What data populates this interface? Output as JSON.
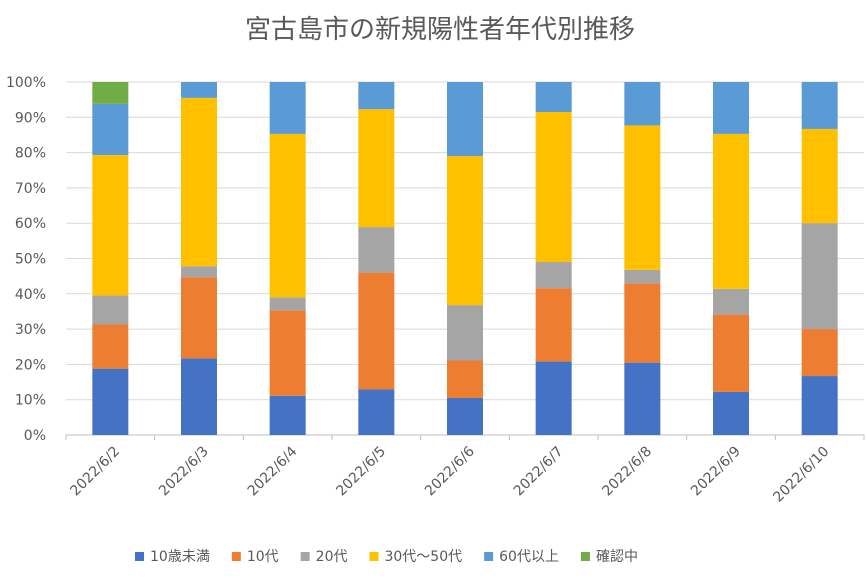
{
  "chart_data": {
    "type": "bar",
    "stacked": true,
    "percent_stacked": true,
    "title": "宮古島市の新規陽性者年代別推移",
    "xlabel": "",
    "ylabel": "",
    "ylim": [
      0,
      100
    ],
    "y_ticks": [
      "0%",
      "10%",
      "20%",
      "30%",
      "40%",
      "50%",
      "60%",
      "70%",
      "80%",
      "90%",
      "100%"
    ],
    "grid": true,
    "legend_position": "bottom",
    "categories": [
      "2022/6/2",
      "2022/6/3",
      "2022/6/4",
      "2022/6/5",
      "2022/6/6",
      "2022/6/7",
      "2022/6/8",
      "2022/6/9",
      "2022/6/10"
    ],
    "series": [
      {
        "name": "10歳未満",
        "color": "#4472C4",
        "values": [
          18.8,
          21.7,
          11.1,
          12.9,
          10.5,
          20.8,
          20.5,
          12.2,
          16.7
        ]
      },
      {
        "name": "10代",
        "color": "#ED7D31",
        "values": [
          12.5,
          23.0,
          24.2,
          33.1,
          10.6,
          20.8,
          22.5,
          21.9,
          13.3
        ]
      },
      {
        "name": "20代",
        "color": "#A5A5A5",
        "values": [
          8.2,
          3.1,
          3.7,
          12.9,
          15.7,
          7.4,
          3.8,
          7.3,
          30.0
        ]
      },
      {
        "name": "30代～50代",
        "color": "#FFC000",
        "values": [
          39.8,
          47.7,
          46.3,
          33.4,
          42.2,
          42.5,
          40.9,
          43.9,
          26.7
        ]
      },
      {
        "name": "60代以上",
        "color": "#5B9BD5",
        "values": [
          14.5,
          4.5,
          14.7,
          7.7,
          21.0,
          8.5,
          12.3,
          14.7,
          13.3
        ]
      },
      {
        "name": "確認中",
        "color": "#70AD47",
        "values": [
          6.2,
          0,
          0,
          0,
          0,
          0,
          0,
          0,
          0
        ]
      }
    ]
  }
}
